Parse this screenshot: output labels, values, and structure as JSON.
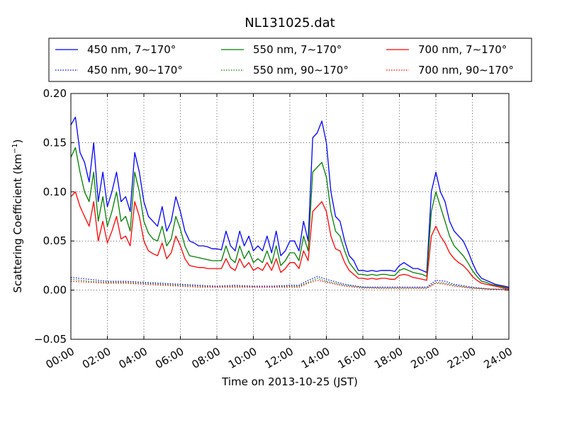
{
  "chart_data": {
    "type": "line",
    "title": "NL131025.dat",
    "xlabel": "Time on 2013-10-25 (JST)",
    "ylabel": "Scattering Coefficient (km",
    "ylabel_sup": "−1",
    "ylabel_end": ")",
    "x_unit": "hour",
    "xlim": [
      0,
      24
    ],
    "ylim": [
      -0.05,
      0.2
    ],
    "x_ticks": [
      0,
      2,
      4,
      6,
      8,
      10,
      12,
      14,
      16,
      18,
      20,
      22,
      24
    ],
    "x_tick_labels": [
      "00:00",
      "02:00",
      "04:00",
      "06:00",
      "08:00",
      "10:00",
      "12:00",
      "14:00",
      "16:00",
      "18:00",
      "20:00",
      "22:00",
      "24:00"
    ],
    "y_ticks": [
      -0.05,
      0.0,
      0.05,
      0.1,
      0.15,
      0.2
    ],
    "y_tick_labels": [
      "−0.05",
      "0.00",
      "0.05",
      "0.10",
      "0.15",
      "0.20"
    ],
    "grid": true,
    "legend_placement": "top, above plot, 3 columns",
    "series": [
      {
        "name": "450 nm, 7∼170°",
        "color": "#0000ff",
        "style": "solid",
        "x": [
          0,
          0.25,
          0.5,
          0.75,
          1,
          1.25,
          1.5,
          1.75,
          2,
          2.25,
          2.5,
          2.75,
          3,
          3.25,
          3.5,
          3.75,
          4,
          4.25,
          4.5,
          4.75,
          5,
          5.25,
          5.5,
          5.75,
          6,
          6.25,
          6.5,
          6.75,
          7,
          7.25,
          7.5,
          7.75,
          8,
          8.25,
          8.5,
          8.75,
          9,
          9.25,
          9.5,
          9.75,
          10,
          10.25,
          10.5,
          10.75,
          11,
          11.25,
          11.5,
          11.75,
          12,
          12.25,
          12.5,
          12.75,
          13,
          13.25,
          13.5,
          13.75,
          14,
          14.25,
          14.5,
          14.75,
          15,
          15.25,
          15.5,
          15.75,
          16,
          16.25,
          16.5,
          16.75,
          17,
          17.25,
          17.5,
          17.75,
          18,
          18.25,
          18.5,
          18.75,
          19,
          19.25,
          19.5,
          19.75,
          20,
          20.25,
          20.5,
          20.75,
          21,
          21.25,
          21.5,
          21.75,
          22,
          22.25,
          22.5,
          22.75,
          23,
          23.25,
          23.5,
          23.75,
          24
        ],
        "y": [
          0.168,
          0.176,
          0.14,
          0.13,
          0.11,
          0.15,
          0.09,
          0.12,
          0.085,
          0.1,
          0.12,
          0.09,
          0.095,
          0.08,
          0.14,
          0.12,
          0.09,
          0.075,
          0.07,
          0.065,
          0.085,
          0.06,
          0.07,
          0.095,
          0.08,
          0.06,
          0.05,
          0.048,
          0.045,
          0.045,
          0.044,
          0.042,
          0.042,
          0.041,
          0.06,
          0.045,
          0.04,
          0.06,
          0.045,
          0.055,
          0.04,
          0.045,
          0.04,
          0.055,
          0.038,
          0.06,
          0.035,
          0.04,
          0.05,
          0.05,
          0.04,
          0.07,
          0.05,
          0.155,
          0.16,
          0.172,
          0.15,
          0.1,
          0.075,
          0.07,
          0.05,
          0.035,
          0.03,
          0.02,
          0.02,
          0.019,
          0.02,
          0.019,
          0.02,
          0.02,
          0.02,
          0.019,
          0.025,
          0.028,
          0.025,
          0.022,
          0.022,
          0.02,
          0.018,
          0.1,
          0.12,
          0.1,
          0.09,
          0.07,
          0.06,
          0.055,
          0.05,
          0.04,
          0.028,
          0.018,
          0.012,
          0.01,
          0.008,
          0.006,
          0.005,
          0.004,
          0.003
        ]
      },
      {
        "name": "550 nm, 7∼170°",
        "color": "#008000",
        "style": "solid",
        "x": [
          0,
          0.25,
          0.5,
          0.75,
          1,
          1.25,
          1.5,
          1.75,
          2,
          2.25,
          2.5,
          2.75,
          3,
          3.25,
          3.5,
          3.75,
          4,
          4.25,
          4.5,
          4.75,
          5,
          5.25,
          5.5,
          5.75,
          6,
          6.25,
          6.5,
          6.75,
          7,
          7.25,
          7.5,
          7.75,
          8,
          8.25,
          8.5,
          8.75,
          9,
          9.25,
          9.5,
          9.75,
          10,
          10.25,
          10.5,
          10.75,
          11,
          11.25,
          11.5,
          11.75,
          12,
          12.25,
          12.5,
          12.75,
          13,
          13.25,
          13.5,
          13.75,
          14,
          14.25,
          14.5,
          14.75,
          15,
          15.25,
          15.5,
          15.75,
          16,
          16.25,
          16.5,
          16.75,
          17,
          17.25,
          17.5,
          17.75,
          18,
          18.25,
          18.5,
          18.75,
          19,
          19.25,
          19.5,
          19.75,
          20,
          20.25,
          20.5,
          20.75,
          21,
          21.25,
          21.5,
          21.75,
          22,
          22.25,
          22.5,
          22.75,
          23,
          23.25,
          23.5,
          23.75,
          24
        ],
        "y": [
          0.135,
          0.145,
          0.12,
          0.1,
          0.09,
          0.12,
          0.07,
          0.095,
          0.065,
          0.08,
          0.1,
          0.07,
          0.075,
          0.06,
          0.12,
          0.1,
          0.07,
          0.058,
          0.052,
          0.05,
          0.065,
          0.045,
          0.052,
          0.075,
          0.062,
          0.045,
          0.035,
          0.034,
          0.033,
          0.032,
          0.031,
          0.03,
          0.03,
          0.03,
          0.045,
          0.032,
          0.028,
          0.045,
          0.032,
          0.04,
          0.028,
          0.032,
          0.028,
          0.04,
          0.027,
          0.045,
          0.025,
          0.03,
          0.038,
          0.038,
          0.03,
          0.055,
          0.04,
          0.12,
          0.125,
          0.13,
          0.115,
          0.08,
          0.06,
          0.055,
          0.04,
          0.028,
          0.022,
          0.016,
          0.016,
          0.015,
          0.016,
          0.015,
          0.016,
          0.016,
          0.015,
          0.015,
          0.02,
          0.022,
          0.02,
          0.018,
          0.017,
          0.016,
          0.014,
          0.08,
          0.1,
          0.085,
          0.07,
          0.055,
          0.045,
          0.04,
          0.035,
          0.028,
          0.02,
          0.014,
          0.009,
          0.008,
          0.006,
          0.005,
          0.004,
          0.003,
          0.002
        ]
      },
      {
        "name": "700 nm, 7∼170°",
        "color": "#ff0000",
        "style": "solid",
        "x": [
          0,
          0.25,
          0.5,
          0.75,
          1,
          1.25,
          1.5,
          1.75,
          2,
          2.25,
          2.5,
          2.75,
          3,
          3.25,
          3.5,
          3.75,
          4,
          4.25,
          4.5,
          4.75,
          5,
          5.25,
          5.5,
          5.75,
          6,
          6.25,
          6.5,
          6.75,
          7,
          7.25,
          7.5,
          7.75,
          8,
          8.25,
          8.5,
          8.75,
          9,
          9.25,
          9.5,
          9.75,
          10,
          10.25,
          10.5,
          10.75,
          11,
          11.25,
          11.5,
          11.75,
          12,
          12.25,
          12.5,
          12.75,
          13,
          13.25,
          13.5,
          13.75,
          14,
          14.25,
          14.5,
          14.75,
          15,
          15.25,
          15.5,
          15.75,
          16,
          16.25,
          16.5,
          16.75,
          17,
          17.25,
          17.5,
          17.75,
          18,
          18.25,
          18.5,
          18.75,
          19,
          19.25,
          19.5,
          19.75,
          20,
          20.25,
          20.5,
          20.75,
          21,
          21.25,
          21.5,
          21.75,
          22,
          22.25,
          22.5,
          22.75,
          23,
          23.25,
          23.5,
          23.75,
          24
        ],
        "y": [
          0.095,
          0.1,
          0.085,
          0.075,
          0.065,
          0.09,
          0.05,
          0.07,
          0.048,
          0.06,
          0.075,
          0.052,
          0.055,
          0.045,
          0.09,
          0.075,
          0.05,
          0.04,
          0.037,
          0.035,
          0.048,
          0.032,
          0.038,
          0.055,
          0.045,
          0.032,
          0.025,
          0.024,
          0.023,
          0.023,
          0.022,
          0.022,
          0.022,
          0.022,
          0.032,
          0.023,
          0.02,
          0.032,
          0.023,
          0.028,
          0.02,
          0.023,
          0.02,
          0.028,
          0.02,
          0.032,
          0.018,
          0.022,
          0.028,
          0.028,
          0.022,
          0.04,
          0.03,
          0.08,
          0.085,
          0.09,
          0.08,
          0.055,
          0.042,
          0.04,
          0.028,
          0.02,
          0.016,
          0.012,
          0.012,
          0.011,
          0.012,
          0.011,
          0.012,
          0.012,
          0.011,
          0.011,
          0.015,
          0.016,
          0.015,
          0.013,
          0.012,
          0.011,
          0.01,
          0.055,
          0.065,
          0.055,
          0.048,
          0.038,
          0.032,
          0.028,
          0.025,
          0.02,
          0.014,
          0.01,
          0.007,
          0.006,
          0.005,
          0.004,
          0.003,
          0.002,
          0.002
        ]
      },
      {
        "name": "450 nm, 90∼170°",
        "color": "#0000ff",
        "style": "dotted",
        "x": [
          0,
          1,
          2,
          3,
          4,
          5,
          6,
          7,
          8,
          9,
          10,
          11,
          12,
          12.5,
          13,
          13.5,
          14,
          15,
          16,
          17,
          18,
          19,
          19.5,
          20,
          20.5,
          21,
          22,
          23,
          24
        ],
        "y": [
          0.013,
          0.011,
          0.009,
          0.009,
          0.008,
          0.007,
          0.006,
          0.005,
          0.004,
          0.005,
          0.004,
          0.004,
          0.005,
          0.005,
          0.01,
          0.014,
          0.011,
          0.006,
          0.003,
          0.003,
          0.003,
          0.003,
          0.003,
          0.01,
          0.009,
          0.006,
          0.003,
          0.001,
          0.001
        ]
      },
      {
        "name": "550 nm, 90∼170°",
        "color": "#008000",
        "style": "dotted",
        "x": [
          0,
          1,
          2,
          3,
          4,
          5,
          6,
          7,
          8,
          9,
          10,
          11,
          12,
          12.5,
          13,
          13.5,
          14,
          15,
          16,
          17,
          18,
          19,
          19.5,
          20,
          20.5,
          21,
          22,
          23,
          24
        ],
        "y": [
          0.011,
          0.009,
          0.008,
          0.008,
          0.007,
          0.006,
          0.005,
          0.004,
          0.003,
          0.004,
          0.003,
          0.003,
          0.004,
          0.004,
          0.008,
          0.012,
          0.009,
          0.005,
          0.003,
          0.002,
          0.002,
          0.002,
          0.002,
          0.008,
          0.007,
          0.005,
          0.002,
          0.001,
          0.001
        ]
      },
      {
        "name": "700 nm, 90∼170°",
        "color": "#ff0000",
        "style": "dotted",
        "x": [
          0,
          1,
          2,
          3,
          4,
          5,
          6,
          7,
          8,
          9,
          10,
          11,
          12,
          12.5,
          13,
          13.5,
          14,
          15,
          16,
          17,
          18,
          19,
          19.5,
          20,
          20.5,
          21,
          22,
          23,
          24
        ],
        "y": [
          0.009,
          0.008,
          0.007,
          0.007,
          0.006,
          0.005,
          0.004,
          0.003,
          0.003,
          0.003,
          0.003,
          0.003,
          0.003,
          0.003,
          0.007,
          0.01,
          0.008,
          0.004,
          0.002,
          0.002,
          0.002,
          0.002,
          0.002,
          0.007,
          0.006,
          0.004,
          0.002,
          0.001,
          0.0
        ]
      }
    ]
  }
}
